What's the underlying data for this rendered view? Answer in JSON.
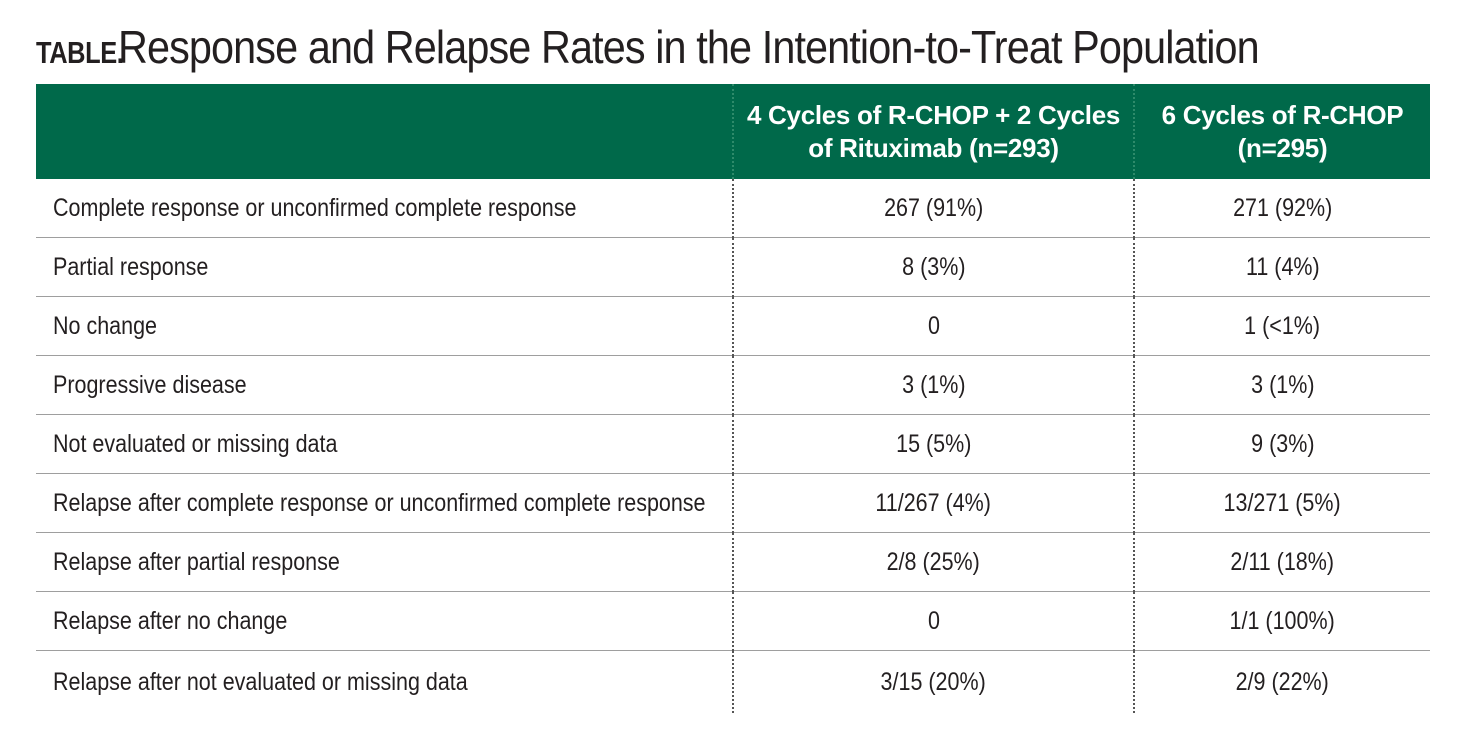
{
  "title": {
    "label": "TABLE.",
    "text": "Response and Relapse Rates in the Intention-to-Treat Population"
  },
  "table": {
    "headers": [
      "",
      "4 Cycles of R-CHOP + 2 Cycles of Rituximab (n=293)",
      "6 Cycles of R-CHOP (n=295)"
    ],
    "rows": [
      {
        "label": "Complete response or unconfirmed complete response",
        "a": "267 (91%)",
        "b": "271 (92%)"
      },
      {
        "label": "Partial response",
        "a": "8 (3%)",
        "b": "11 (4%)"
      },
      {
        "label": "No change",
        "a": "0",
        "b": "1 (<1%)"
      },
      {
        "label": "Progressive disease",
        "a": "3 (1%)",
        "b": "3 (1%)"
      },
      {
        "label": "Not evaluated or missing data",
        "a": "15 (5%)",
        "b": "9 (3%)"
      },
      {
        "label": "Relapse after complete response or unconfirmed complete response",
        "a": "11/267 (4%)",
        "b": "13/271 (5%)"
      },
      {
        "label": "Relapse after partial response",
        "a": "2/8 (25%)",
        "b": "2/11 (18%)"
      },
      {
        "label": "Relapse after no change",
        "a": "0",
        "b": "1/1 (100%)"
      },
      {
        "label": "Relapse after not evaluated or missing data",
        "a": "3/15 (20%)",
        "b": "2/9 (22%)"
      }
    ]
  }
}
